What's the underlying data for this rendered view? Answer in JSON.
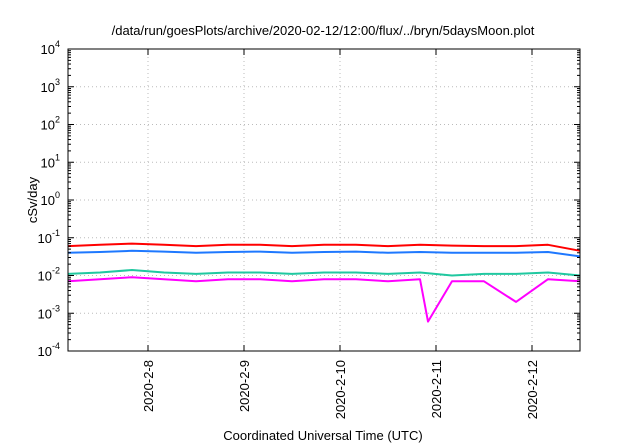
{
  "chart_data": {
    "type": "line",
    "title": "/data/run/goesPlots/archive/2020-02-12/12:00/flux/../bryn/5daysMoon.plot",
    "xlabel": "Coordinated Universal Time (UTC)",
    "ylabel": "cSv/day",
    "yscale": "log",
    "ylim": [
      0.0001,
      10000
    ],
    "xlim": [
      "2020-02-07T04:00",
      "2020-02-12T12:00"
    ],
    "grid": true,
    "y_ticks": [
      {
        "value": 0.0001,
        "base": "10",
        "exp": "-4"
      },
      {
        "value": 0.001,
        "base": "10",
        "exp": "-3"
      },
      {
        "value": 0.01,
        "base": "10",
        "exp": "-2"
      },
      {
        "value": 0.1,
        "base": "10",
        "exp": "-1"
      },
      {
        "value": 1,
        "base": "10",
        "exp": "0"
      },
      {
        "value": 10,
        "base": "10",
        "exp": "1"
      },
      {
        "value": 100,
        "base": "10",
        "exp": "2"
      },
      {
        "value": 1000,
        "base": "10",
        "exp": "3"
      },
      {
        "value": 10000,
        "base": "10",
        "exp": "4"
      }
    ],
    "x_ticks": [
      {
        "value": "2020-02-08T00:00",
        "label": "2020-2-8"
      },
      {
        "value": "2020-02-09T00:00",
        "label": "2020-2-9"
      },
      {
        "value": "2020-02-10T00:00",
        "label": "2020-2-10"
      },
      {
        "value": "2020-02-11T00:00",
        "label": "2020-2-11"
      },
      {
        "value": "2020-02-12T00:00",
        "label": "2020-2-12"
      }
    ],
    "series": [
      {
        "color": "#ff0000",
        "x": [
          "2020-02-07T04:00",
          "2020-02-07T12:00",
          "2020-02-07T20:00",
          "2020-02-08T04:00",
          "2020-02-08T12:00",
          "2020-02-08T20:00",
          "2020-02-09T04:00",
          "2020-02-09T12:00",
          "2020-02-09T20:00",
          "2020-02-10T04:00",
          "2020-02-10T12:00",
          "2020-02-10T20:00",
          "2020-02-11T04:00",
          "2020-02-11T12:00",
          "2020-02-11T20:00",
          "2020-02-12T04:00",
          "2020-02-12T12:00"
        ],
        "values": [
          0.06,
          0.065,
          0.07,
          0.065,
          0.06,
          0.065,
          0.065,
          0.06,
          0.065,
          0.065,
          0.06,
          0.065,
          0.062,
          0.06,
          0.06,
          0.065,
          0.045
        ]
      },
      {
        "color": "#1e78ff",
        "x": [
          "2020-02-07T04:00",
          "2020-02-07T12:00",
          "2020-02-07T20:00",
          "2020-02-08T04:00",
          "2020-02-08T12:00",
          "2020-02-08T20:00",
          "2020-02-09T04:00",
          "2020-02-09T12:00",
          "2020-02-09T20:00",
          "2020-02-10T04:00",
          "2020-02-10T12:00",
          "2020-02-10T20:00",
          "2020-02-11T04:00",
          "2020-02-11T12:00",
          "2020-02-11T20:00",
          "2020-02-12T04:00",
          "2020-02-12T12:00"
        ],
        "values": [
          0.04,
          0.042,
          0.045,
          0.043,
          0.04,
          0.042,
          0.043,
          0.04,
          0.042,
          0.043,
          0.04,
          0.042,
          0.04,
          0.04,
          0.04,
          0.042,
          0.032
        ]
      },
      {
        "color": "#20c8a0",
        "x": [
          "2020-02-07T04:00",
          "2020-02-07T12:00",
          "2020-02-07T20:00",
          "2020-02-08T04:00",
          "2020-02-08T12:00",
          "2020-02-08T20:00",
          "2020-02-09T04:00",
          "2020-02-09T12:00",
          "2020-02-09T20:00",
          "2020-02-10T04:00",
          "2020-02-10T12:00",
          "2020-02-10T20:00",
          "2020-02-11T04:00",
          "2020-02-11T12:00",
          "2020-02-11T20:00",
          "2020-02-12T04:00",
          "2020-02-12T12:00"
        ],
        "values": [
          0.011,
          0.012,
          0.014,
          0.012,
          0.011,
          0.012,
          0.012,
          0.011,
          0.012,
          0.012,
          0.011,
          0.012,
          0.01,
          0.011,
          0.011,
          0.012,
          0.01
        ]
      },
      {
        "color": "#ff00ff",
        "x": [
          "2020-02-07T04:00",
          "2020-02-07T12:00",
          "2020-02-07T20:00",
          "2020-02-08T04:00",
          "2020-02-08T12:00",
          "2020-02-08T20:00",
          "2020-02-09T04:00",
          "2020-02-09T12:00",
          "2020-02-09T20:00",
          "2020-02-10T04:00",
          "2020-02-10T12:00",
          "2020-02-10T20:00",
          "2020-02-10T22:00",
          "2020-02-11T04:00",
          "2020-02-11T12:00",
          "2020-02-11T20:00",
          "2020-02-12T04:00",
          "2020-02-12T12:00"
        ],
        "values": [
          0.007,
          0.008,
          0.009,
          0.008,
          0.007,
          0.008,
          0.008,
          0.007,
          0.008,
          0.008,
          0.007,
          0.008,
          0.0006,
          0.007,
          0.007,
          0.002,
          0.008,
          0.007
        ]
      }
    ]
  }
}
